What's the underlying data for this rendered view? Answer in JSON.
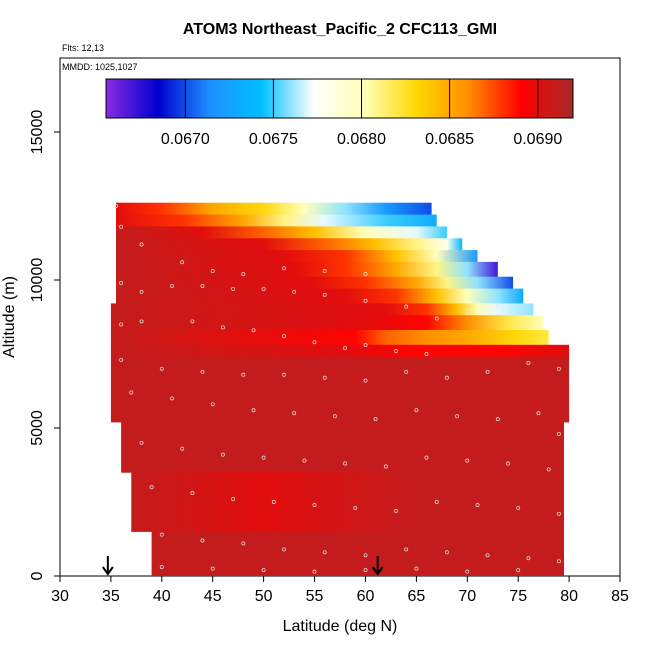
{
  "chart_data": {
    "type": "heatmap",
    "title": "ATOM3 Northeast_Pacific_2 CFC113_GMI",
    "annotations": {
      "flights": "Flts: 12,13",
      "dates": "MMDD: 1025,1027"
    },
    "xlabel": "Latitude (deg N)",
    "ylabel": "Altitude (m)",
    "xlim": [
      30,
      85
    ],
    "ylim": [
      0,
      17500
    ],
    "x_ticks": [
      30,
      35,
      40,
      45,
      50,
      55,
      60,
      65,
      70,
      75,
      80,
      85
    ],
    "y_ticks": [
      0,
      5000,
      10000,
      15000
    ],
    "colorbar": {
      "range": [
        0.06655,
        0.0692
      ],
      "ticks": [
        0.067,
        0.0675,
        0.068,
        0.0685,
        0.069
      ],
      "tick_labels": [
        "0.0670",
        "0.0675",
        "0.0680",
        "0.0685",
        "0.0690"
      ],
      "colors": [
        "#8A2BE2",
        "#0000CD",
        "#1E90FF",
        "#00BFFF",
        "#FFFFFF",
        "#FFFFB4",
        "#FFD700",
        "#FF8C00",
        "#FF0000",
        "#A52A2A"
      ]
    },
    "arrows_at_latitude": [
      34.7,
      61.2
    ],
    "bands": [
      {
        "alt_range": [
          12200,
          12600
        ],
        "lat_start": 35.5,
        "lat_end": 66.5,
        "stops": [
          [
            35.5,
            0.069
          ],
          [
            40,
            0.0688
          ],
          [
            45,
            0.0685
          ],
          [
            50,
            0.0683
          ],
          [
            54,
            0.068
          ],
          [
            58,
            0.0676
          ],
          [
            62,
            0.0672
          ],
          [
            66.5,
            0.067
          ]
        ]
      },
      {
        "alt_range": [
          11800,
          12200
        ],
        "lat_start": 35.5,
        "lat_end": 67,
        "stops": [
          [
            35.5,
            0.069
          ],
          [
            42,
            0.0688
          ],
          [
            48,
            0.0685
          ],
          [
            52,
            0.0681
          ],
          [
            56,
            0.0677
          ],
          [
            62,
            0.0675
          ],
          [
            67,
            0.0673
          ]
        ]
      },
      {
        "alt_range": [
          11400,
          11800
        ],
        "lat_start": 35.5,
        "lat_end": 68,
        "stops": [
          [
            35.5,
            0.0691
          ],
          [
            44,
            0.069
          ],
          [
            50,
            0.0687
          ],
          [
            55,
            0.0684
          ],
          [
            60,
            0.068
          ],
          [
            65,
            0.0677
          ],
          [
            68,
            0.0675
          ]
        ]
      },
      {
        "alt_range": [
          11000,
          11400
        ],
        "lat_start": 35.5,
        "lat_end": 69.5,
        "stops": [
          [
            35.5,
            0.0691
          ],
          [
            50,
            0.069
          ],
          [
            56,
            0.0687
          ],
          [
            61,
            0.0684
          ],
          [
            65,
            0.0681
          ],
          [
            68,
            0.0678
          ],
          [
            69.5,
            0.0674
          ]
        ]
      },
      {
        "alt_range": [
          10600,
          11000
        ],
        "lat_start": 35.5,
        "lat_end": 71,
        "stops": [
          [
            35.5,
            0.0691
          ],
          [
            52,
            0.069
          ],
          [
            58,
            0.0688
          ],
          [
            63,
            0.0684
          ],
          [
            67,
            0.068
          ],
          [
            71,
            0.0672
          ]
        ]
      },
      {
        "alt_range": [
          10100,
          10600
        ],
        "lat_start": 35.5,
        "lat_end": 73,
        "stops": [
          [
            35.5,
            0.0691
          ],
          [
            53,
            0.069
          ],
          [
            58,
            0.0688
          ],
          [
            63,
            0.0685
          ],
          [
            67,
            0.0681
          ],
          [
            70,
            0.0676
          ],
          [
            73,
            0.0667
          ]
        ]
      },
      {
        "alt_range": [
          9700,
          10100
        ],
        "lat_start": 35.5,
        "lat_end": 74.5,
        "stops": [
          [
            35.5,
            0.0691
          ],
          [
            55,
            0.069
          ],
          [
            60,
            0.0688
          ],
          [
            65,
            0.0685
          ],
          [
            68,
            0.0681
          ],
          [
            71,
            0.0676
          ],
          [
            74.5,
            0.067
          ]
        ]
      },
      {
        "alt_range": [
          9200,
          9700
        ],
        "lat_start": 35.5,
        "lat_end": 75.5,
        "stops": [
          [
            35.5,
            0.0691
          ],
          [
            58,
            0.069
          ],
          [
            63,
            0.0688
          ],
          [
            67,
            0.0684
          ],
          [
            70,
            0.068
          ],
          [
            73,
            0.0676
          ],
          [
            75.5,
            0.0673
          ]
        ]
      },
      {
        "alt_range": [
          8800,
          9200
        ],
        "lat_start": 35,
        "lat_end": 76.5,
        "stops": [
          [
            35,
            0.0691
          ],
          [
            62,
            0.069
          ],
          [
            66,
            0.0688
          ],
          [
            69,
            0.0684
          ],
          [
            71,
            0.068
          ],
          [
            73,
            0.0677
          ],
          [
            76.5,
            0.0676
          ]
        ]
      },
      {
        "alt_range": [
          8300,
          8800
        ],
        "lat_start": 35,
        "lat_end": 77.5,
        "stops": [
          [
            35,
            0.0691
          ],
          [
            60,
            0.069
          ],
          [
            66,
            0.0689
          ],
          [
            70,
            0.0686
          ],
          [
            74,
            0.0682
          ],
          [
            77.5,
            0.068
          ]
        ]
      },
      {
        "alt_range": [
          7800,
          8300
        ],
        "lat_start": 35,
        "lat_end": 78,
        "stops": [
          [
            35,
            0.0691
          ],
          [
            59,
            0.0689
          ],
          [
            62,
            0.0687
          ],
          [
            66,
            0.0686
          ],
          [
            70,
            0.0685
          ],
          [
            75,
            0.0683
          ],
          [
            78,
            0.0682
          ]
        ]
      },
      {
        "alt_range": [
          7400,
          7800
        ],
        "lat_start": 35,
        "lat_end": 80,
        "stops": [
          [
            35,
            0.0691
          ],
          [
            58,
            0.069
          ],
          [
            65,
            0.0689
          ],
          [
            72,
            0.0689
          ],
          [
            80,
            0.069
          ]
        ]
      },
      {
        "alt_range": [
          5200,
          7400
        ],
        "lat_start": 35,
        "lat_end": 80,
        "stops": [
          [
            35,
            0.0691
          ],
          [
            55,
            0.0691
          ],
          [
            80,
            0.0691
          ]
        ]
      },
      {
        "alt_range": [
          3500,
          5200
        ],
        "lat_start": 36,
        "lat_end": 79.5,
        "stops": [
          [
            36,
            0.0691
          ],
          [
            55,
            0.0691
          ],
          [
            79.5,
            0.0691
          ]
        ]
      },
      {
        "alt_range": [
          1500,
          3500
        ],
        "lat_start": 37,
        "lat_end": 79.5,
        "stops": [
          [
            37,
            0.0691
          ],
          [
            50,
            0.069
          ],
          [
            65,
            0.0691
          ],
          [
            79.5,
            0.0691
          ]
        ]
      },
      {
        "alt_range": [
          0,
          1500
        ],
        "lat_start": 39,
        "lat_end": 79.5,
        "stops": [
          [
            39,
            0.0691
          ],
          [
            60,
            0.0691
          ],
          [
            79.5,
            0.0691
          ]
        ]
      }
    ],
    "sample_points": [
      [
        35.5,
        12500
      ],
      [
        36,
        11800
      ],
      [
        38,
        11200
      ],
      [
        42,
        10600
      ],
      [
        45,
        10300
      ],
      [
        48,
        10200
      ],
      [
        52,
        10400
      ],
      [
        56,
        10300
      ],
      [
        60,
        10200
      ],
      [
        36,
        9900
      ],
      [
        38,
        9600
      ],
      [
        41,
        9800
      ],
      [
        44,
        9800
      ],
      [
        47,
        9700
      ],
      [
        50,
        9700
      ],
      [
        53,
        9600
      ],
      [
        56,
        9500
      ],
      [
        60,
        9300
      ],
      [
        64,
        9100
      ],
      [
        67,
        8700
      ],
      [
        70,
        8900
      ],
      [
        73,
        9100
      ],
      [
        36,
        8500
      ],
      [
        38,
        8600
      ],
      [
        43,
        8600
      ],
      [
        46,
        8400
      ],
      [
        49,
        8300
      ],
      [
        52,
        8100
      ],
      [
        55,
        7900
      ],
      [
        58,
        7700
      ],
      [
        60,
        7800
      ],
      [
        63,
        7600
      ],
      [
        66,
        7500
      ],
      [
        36,
        7300
      ],
      [
        40,
        7000
      ],
      [
        44,
        6900
      ],
      [
        48,
        6800
      ],
      [
        52,
        6800
      ],
      [
        56,
        6700
      ],
      [
        60,
        6600
      ],
      [
        64,
        6900
      ],
      [
        68,
        6700
      ],
      [
        72,
        6900
      ],
      [
        76,
        7200
      ],
      [
        79,
        7000
      ],
      [
        37,
        6200
      ],
      [
        41,
        6000
      ],
      [
        45,
        5800
      ],
      [
        49,
        5600
      ],
      [
        53,
        5500
      ],
      [
        57,
        5400
      ],
      [
        61,
        5300
      ],
      [
        65,
        5600
      ],
      [
        69,
        5400
      ],
      [
        73,
        5300
      ],
      [
        77,
        5500
      ],
      [
        79,
        4800
      ],
      [
        38,
        4500
      ],
      [
        42,
        4300
      ],
      [
        46,
        4100
      ],
      [
        50,
        4000
      ],
      [
        54,
        3900
      ],
      [
        58,
        3800
      ],
      [
        62,
        3700
      ],
      [
        66,
        4000
      ],
      [
        70,
        3900
      ],
      [
        74,
        3800
      ],
      [
        78,
        3600
      ],
      [
        39,
        3000
      ],
      [
        43,
        2800
      ],
      [
        47,
        2600
      ],
      [
        51,
        2500
      ],
      [
        55,
        2400
      ],
      [
        59,
        2300
      ],
      [
        63,
        2200
      ],
      [
        67,
        2500
      ],
      [
        71,
        2400
      ],
      [
        75,
        2300
      ],
      [
        79,
        2100
      ],
      [
        40,
        1400
      ],
      [
        44,
        1200
      ],
      [
        48,
        1100
      ],
      [
        52,
        900
      ],
      [
        56,
        800
      ],
      [
        60,
        700
      ],
      [
        64,
        900
      ],
      [
        68,
        800
      ],
      [
        72,
        700
      ],
      [
        76,
        600
      ],
      [
        79,
        500
      ],
      [
        40,
        300
      ],
      [
        45,
        250
      ],
      [
        50,
        200
      ],
      [
        55,
        150
      ],
      [
        60,
        200
      ],
      [
        65,
        250
      ],
      [
        70,
        150
      ],
      [
        75,
        200
      ]
    ]
  }
}
